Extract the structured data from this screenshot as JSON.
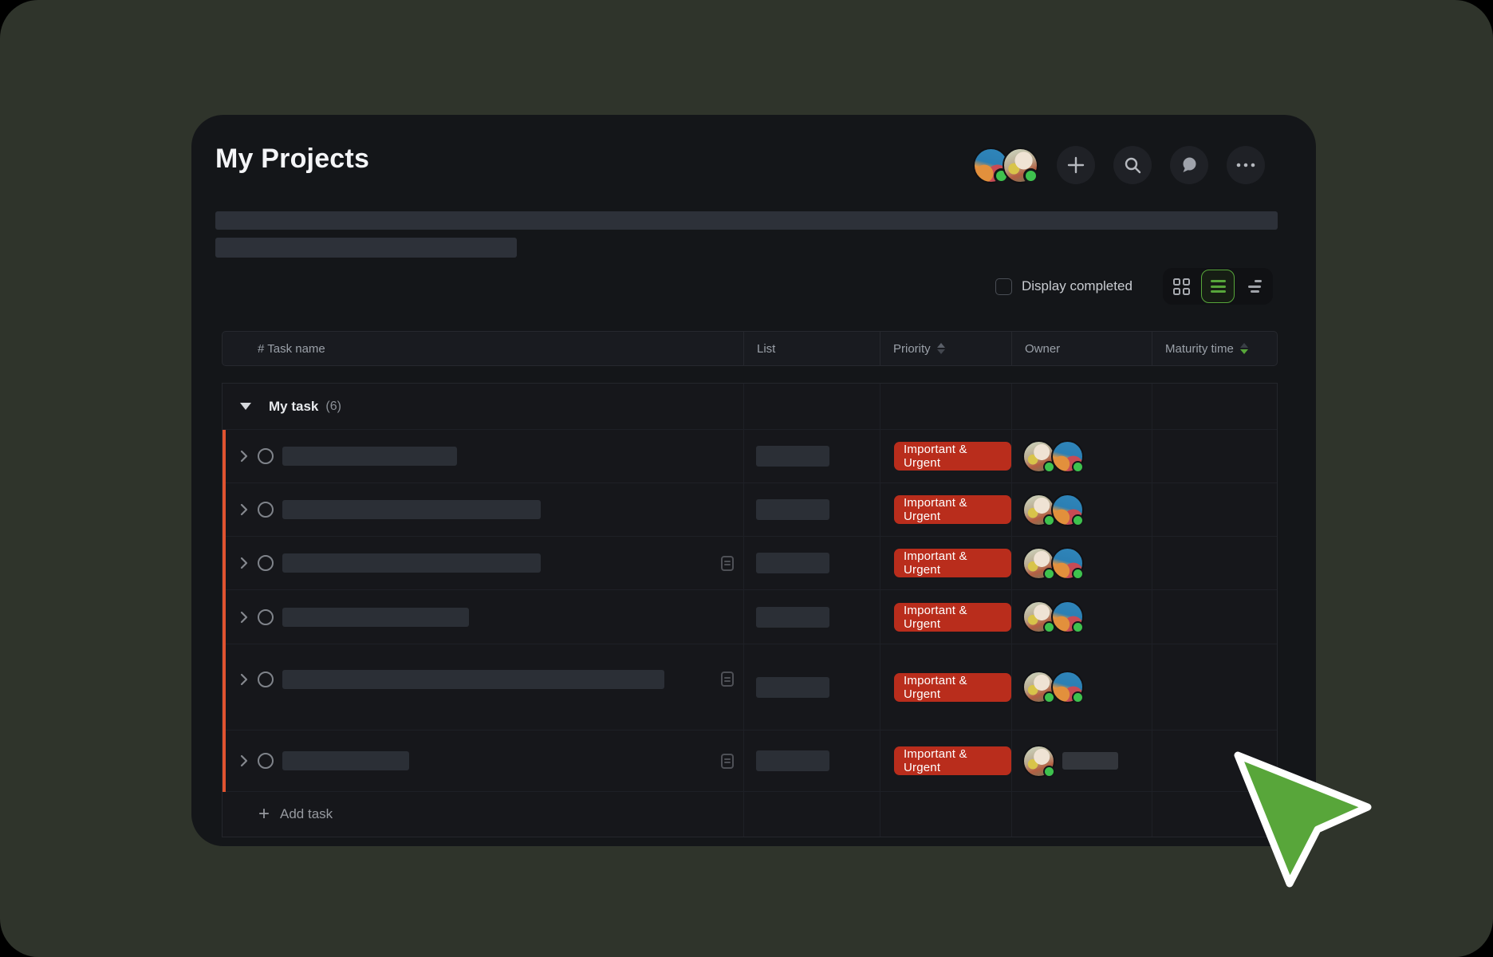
{
  "window": {
    "title": "My Projects"
  },
  "colors": {
    "badge": "#b92d1c",
    "orange_accent": "#e05330",
    "green": "#57a63a",
    "status_dot": "#3ec24e",
    "cursor_fill": "#58a63a"
  },
  "header": {
    "avatars": [
      {
        "id": "anime"
      },
      {
        "id": "baby"
      }
    ],
    "actions": [
      {
        "name": "add",
        "icon": "plus-icon"
      },
      {
        "name": "search",
        "icon": "search-icon"
      },
      {
        "name": "chat",
        "icon": "chat-bubble-icon"
      },
      {
        "name": "more",
        "icon": "ellipsis-icon"
      }
    ]
  },
  "controls": {
    "display_completed": {
      "label": "Display completed",
      "checked": false
    },
    "view_buttons": [
      {
        "name": "grid-view",
        "active": false
      },
      {
        "name": "list-view",
        "active": true
      },
      {
        "name": "filter-view",
        "active": false
      }
    ]
  },
  "table": {
    "columns": [
      {
        "label": "# Task name",
        "sort": null
      },
      {
        "label": "List",
        "sort": null
      },
      {
        "label": "Priority",
        "sort": "neutral"
      },
      {
        "label": "Owner",
        "sort": null
      },
      {
        "label": "Maturity time",
        "sort": "desc"
      }
    ],
    "group": {
      "label": "My task",
      "count": "(6)",
      "collapsed": false
    },
    "tasks": [
      {
        "name_bars": [
          219
        ],
        "has_doc_icon": false,
        "list_bar": true,
        "priority": "Important & Urgent",
        "owners": [
          "baby",
          "anime"
        ],
        "owner_bar": false
      },
      {
        "name_bars": [
          324
        ],
        "has_doc_icon": false,
        "list_bar": true,
        "priority": "Important & Urgent",
        "owners": [
          "baby",
          "anime"
        ],
        "owner_bar": false
      },
      {
        "name_bars": [
          324
        ],
        "has_doc_icon": true,
        "list_bar": true,
        "priority": "Important & Urgent",
        "owners": [
          "baby",
          "anime"
        ],
        "owner_bar": false
      },
      {
        "name_bars": [
          234
        ],
        "has_doc_icon": false,
        "list_bar": true,
        "priority": "Important & Urgent",
        "owners": [
          "baby",
          "anime"
        ],
        "owner_bar": false
      },
      {
        "name_bars": [
          479,
          160
        ],
        "has_doc_icon": true,
        "list_bar": true,
        "priority": "Important & Urgent",
        "owners": [
          "baby",
          "anime"
        ],
        "owner_bar": false
      },
      {
        "name_bars": [
          159
        ],
        "has_doc_icon": true,
        "list_bar": true,
        "priority": "Important & Urgent",
        "owners": [
          "baby"
        ],
        "owner_bar": true
      }
    ],
    "add_task": {
      "label": "Add task"
    }
  }
}
